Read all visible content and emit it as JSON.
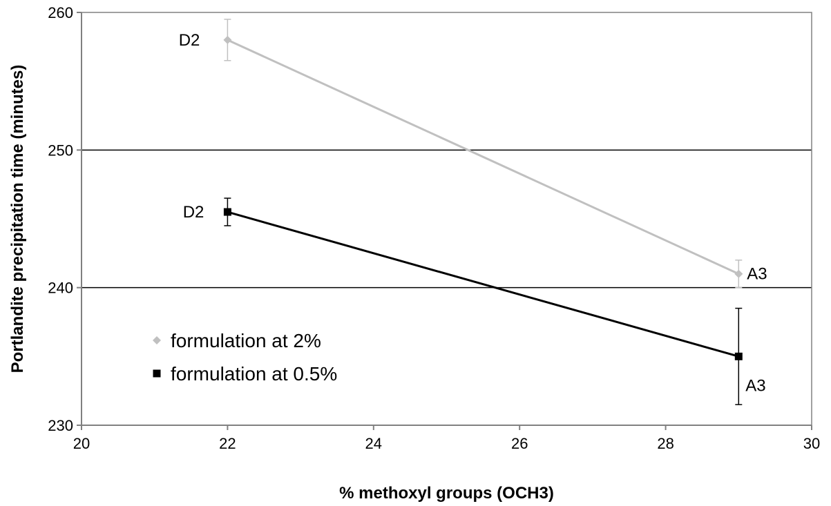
{
  "chart_data": {
    "type": "line",
    "title": "",
    "xlabel": "% methoxyl groups (OCH3)",
    "ylabel": "Portlandite precipitation time (minutes)",
    "xlim": [
      20,
      30
    ],
    "ylim": [
      230,
      260
    ],
    "xticks": [
      20,
      22,
      24,
      26,
      28,
      30
    ],
    "yticks": [
      230,
      240,
      250,
      260
    ],
    "grid": "horizontal",
    "legend_position": "lower-left",
    "series": [
      {
        "name": "formulation at 2%",
        "color": "#c0c0c0",
        "marker": "diamond",
        "points": [
          {
            "x": 22,
            "y": 258,
            "err": 1.5,
            "label": "D2"
          },
          {
            "x": 29,
            "y": 241,
            "err": 1.0,
            "label": "A3"
          }
        ]
      },
      {
        "name": "formulation at 0.5%",
        "color": "#000000",
        "marker": "square",
        "points": [
          {
            "x": 22,
            "y": 245.5,
            "err": 1.0,
            "label": "D2"
          },
          {
            "x": 29,
            "y": 235,
            "err": 3.5,
            "label": "A3"
          }
        ]
      }
    ]
  }
}
